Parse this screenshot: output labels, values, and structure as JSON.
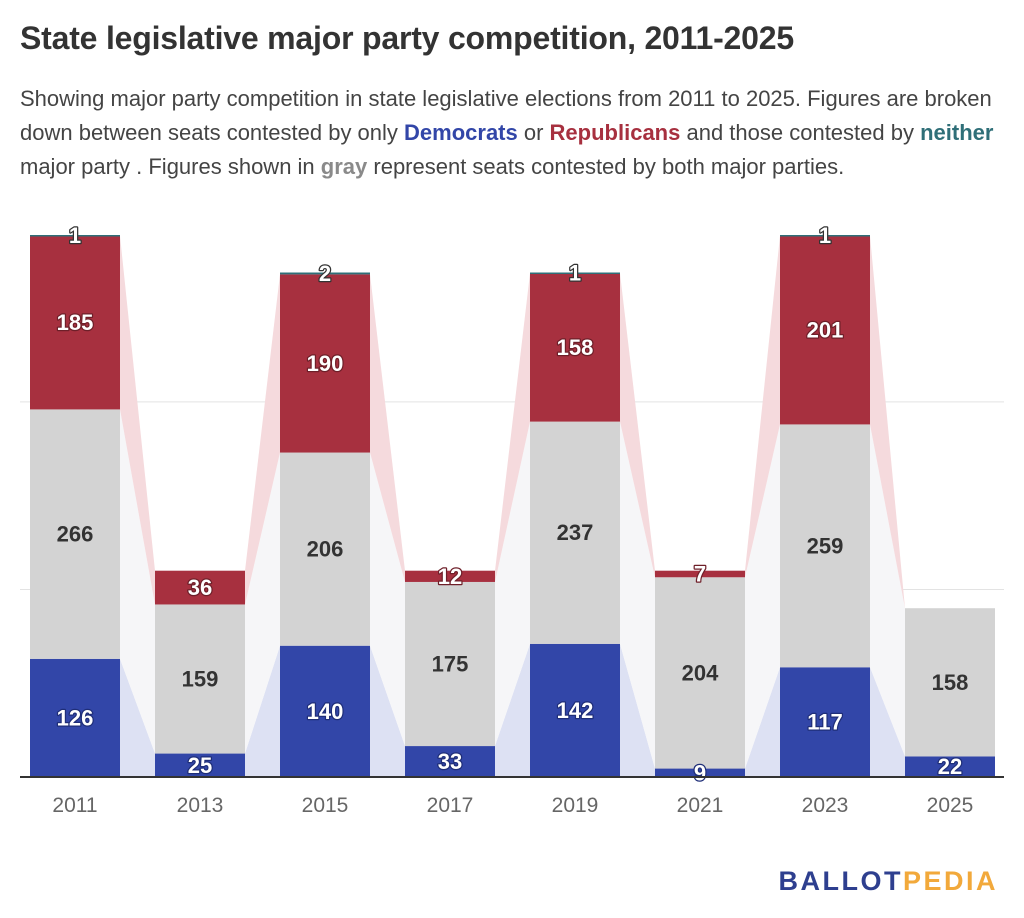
{
  "title": "State legislative major party competition, 2011-2025",
  "subtitle": {
    "p1": "Showing major party competition in state legislative elections from 2011 to 2025. Figures are broken down between seats contested by only ",
    "dem": "Democrats",
    "p2": " or ",
    "rep": "Republicans",
    "p3": " and those contested by ",
    "neither": "neither",
    "p4": " major party . Figures shown in ",
    "gray": "gray",
    "p5": " represent seats contested by both major parties."
  },
  "logo": {
    "part1": "BALLOT",
    "part2": "PEDIA"
  },
  "colors": {
    "democrats": "#3246A8",
    "republicans": "#A7303F",
    "both": "#D3D3D3",
    "neither": "#2F6F78",
    "connector_dem": "#DDE1F3",
    "connector_both": "#F6F6F8",
    "connector_rep": "#F5DADD",
    "gridline": "#E3E3E3",
    "axis": "#333333",
    "logo_blue": "#2E3F8F",
    "logo_gold": "#F2A93B"
  },
  "chart_data": {
    "type": "bar",
    "stacked": true,
    "categories": [
      "2011",
      "2013",
      "2015",
      "2017",
      "2019",
      "2021",
      "2023",
      "2025"
    ],
    "series": [
      {
        "name": "Democrats",
        "values": [
          126,
          25,
          140,
          33,
          142,
          9,
          117,
          22
        ]
      },
      {
        "name": "both major parties",
        "values": [
          266,
          159,
          206,
          175,
          237,
          204,
          259,
          158
        ]
      },
      {
        "name": "Republicans",
        "values": [
          185,
          36,
          190,
          12,
          158,
          7,
          201,
          0
        ]
      },
      {
        "name": "neither",
        "values": [
          1,
          0,
          2,
          0,
          1,
          0,
          1,
          0
        ]
      }
    ],
    "ylim": [
      0,
      578
    ],
    "grid": true,
    "legend": "none"
  }
}
